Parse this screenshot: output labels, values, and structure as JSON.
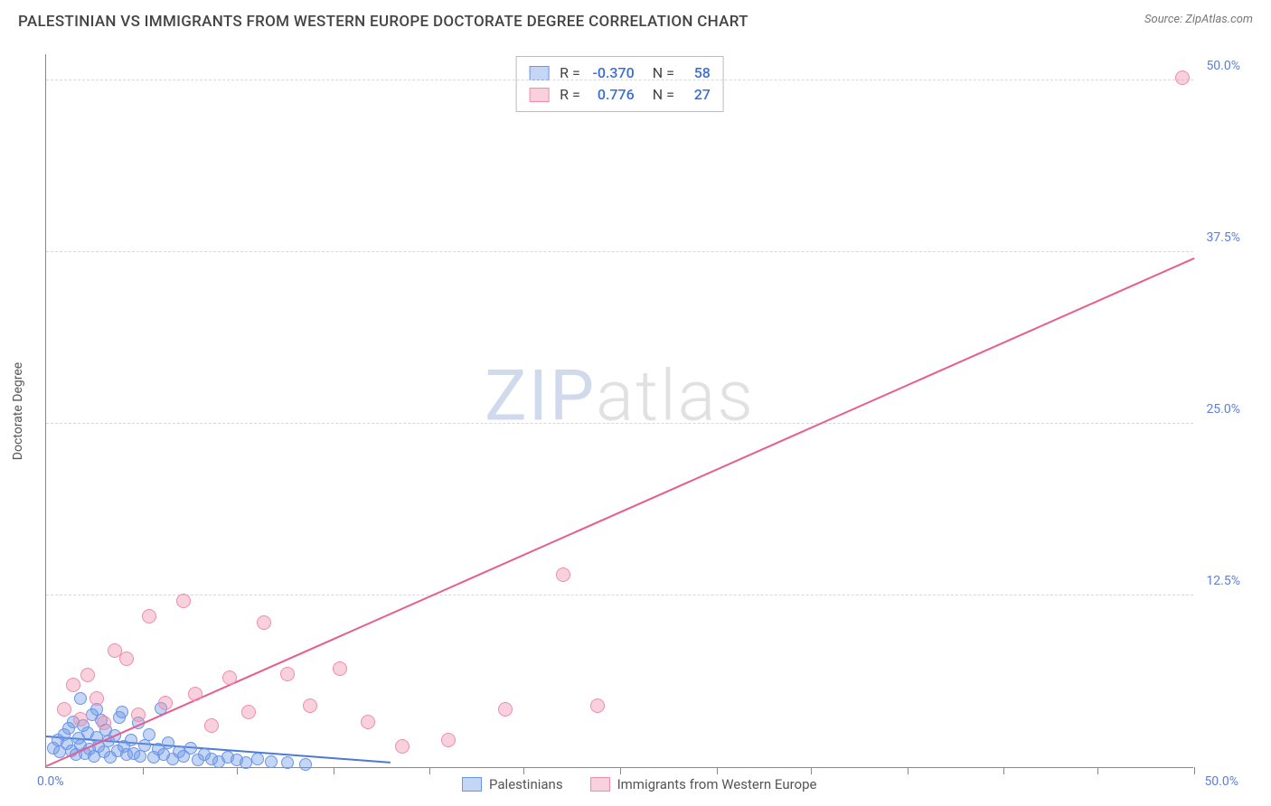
{
  "title": "PALESTINIAN VS IMMIGRANTS FROM WESTERN EUROPE DOCTORATE DEGREE CORRELATION CHART",
  "source_label": "Source: ZipAtlas.com",
  "y_axis_label": "Doctorate Degree",
  "watermark": {
    "zip": "ZIP",
    "atlas": "atlas"
  },
  "chart": {
    "type": "scatter",
    "xlim": [
      0,
      50
    ],
    "ylim": [
      0,
      52
    ],
    "x_origin_label": "0.0%",
    "x_max_label": "50.0%",
    "y_ticks": [
      {
        "v": 12.5,
        "label": "12.5%"
      },
      {
        "v": 25.0,
        "label": "25.0%"
      },
      {
        "v": 37.5,
        "label": "37.5%"
      },
      {
        "v": 50.0,
        "label": "50.0%"
      }
    ],
    "x_tick_positions": [
      4.2,
      8.3,
      12.5,
      16.7,
      20.8,
      25.0,
      29.2,
      33.3,
      37.5,
      41.7,
      45.8,
      50.0
    ],
    "background_color": "#ffffff",
    "grid_color": "#d8d8d8",
    "axis_color": "#888888",
    "series": [
      {
        "key": "palestinians",
        "label": "Palestinians",
        "color_fill": "rgba(110,150,230,0.40)",
        "color_stroke": "#6b96e6",
        "marker_radius": 7,
        "trend": {
          "x1": 0,
          "y1": 2.2,
          "x2": 15,
          "y2": 0.3,
          "color": "#4a7ad6",
          "width": 2
        },
        "stats": {
          "R": "-0.370",
          "N": "58"
        },
        "points": [
          [
            0.3,
            1.4
          ],
          [
            0.5,
            2.0
          ],
          [
            0.6,
            1.1
          ],
          [
            0.8,
            2.4
          ],
          [
            0.9,
            1.7
          ],
          [
            1.0,
            2.8
          ],
          [
            1.1,
            1.2
          ],
          [
            1.2,
            3.3
          ],
          [
            1.3,
            0.9
          ],
          [
            1.4,
            2.1
          ],
          [
            1.5,
            1.6
          ],
          [
            1.6,
            3.0
          ],
          [
            1.7,
            1.0
          ],
          [
            1.8,
            2.5
          ],
          [
            1.9,
            1.3
          ],
          [
            2.0,
            3.8
          ],
          [
            2.1,
            0.8
          ],
          [
            2.2,
            2.2
          ],
          [
            2.3,
            1.5
          ],
          [
            2.4,
            3.4
          ],
          [
            2.5,
            1.1
          ],
          [
            2.6,
            2.7
          ],
          [
            2.7,
            1.9
          ],
          [
            2.8,
            0.7
          ],
          [
            3.0,
            2.3
          ],
          [
            3.1,
            1.2
          ],
          [
            3.2,
            3.6
          ],
          [
            3.4,
            1.5
          ],
          [
            3.5,
            0.9
          ],
          [
            3.7,
            2.0
          ],
          [
            3.8,
            1.0
          ],
          [
            4.0,
            3.2
          ],
          [
            4.1,
            0.8
          ],
          [
            4.3,
            1.6
          ],
          [
            4.5,
            2.4
          ],
          [
            4.7,
            0.7
          ],
          [
            4.9,
            1.3
          ],
          [
            5.1,
            0.9
          ],
          [
            5.3,
            1.8
          ],
          [
            5.5,
            0.6
          ],
          [
            5.8,
            1.1
          ],
          [
            6.0,
            0.8
          ],
          [
            6.3,
            1.4
          ],
          [
            6.6,
            0.5
          ],
          [
            6.9,
            0.9
          ],
          [
            7.2,
            0.6
          ],
          [
            7.5,
            0.4
          ],
          [
            7.9,
            0.7
          ],
          [
            8.3,
            0.5
          ],
          [
            8.7,
            0.3
          ],
          [
            9.2,
            0.6
          ],
          [
            9.8,
            0.4
          ],
          [
            10.5,
            0.3
          ],
          [
            11.3,
            0.2
          ],
          [
            5.0,
            4.3
          ],
          [
            3.3,
            4.0
          ],
          [
            2.2,
            4.2
          ],
          [
            1.5,
            5.0
          ]
        ]
      },
      {
        "key": "immigrants_we",
        "label": "Immigrants from Western Europe",
        "color_fill": "rgba(240,140,170,0.40)",
        "color_stroke": "#f08cab",
        "marker_radius": 8,
        "trend": {
          "x1": 0,
          "y1": 0,
          "x2": 50,
          "y2": 37.0,
          "color": "#e85d8f",
          "width": 2
        },
        "stats": {
          "R": "0.776",
          "N": "27"
        },
        "points": [
          [
            0.8,
            4.2
          ],
          [
            1.2,
            6.0
          ],
          [
            1.5,
            3.5
          ],
          [
            1.8,
            6.7
          ],
          [
            2.2,
            5.0
          ],
          [
            2.5,
            3.2
          ],
          [
            3.0,
            8.5
          ],
          [
            3.5,
            7.9
          ],
          [
            4.0,
            3.8
          ],
          [
            4.5,
            11.0
          ],
          [
            5.2,
            4.7
          ],
          [
            6.0,
            12.1
          ],
          [
            6.5,
            5.3
          ],
          [
            7.2,
            3.0
          ],
          [
            8.0,
            6.5
          ],
          [
            8.8,
            4.0
          ],
          [
            9.5,
            10.5
          ],
          [
            10.5,
            6.8
          ],
          [
            11.5,
            4.5
          ],
          [
            12.8,
            7.2
          ],
          [
            14.0,
            3.3
          ],
          [
            15.5,
            1.5
          ],
          [
            17.5,
            2.0
          ],
          [
            20.0,
            4.2
          ],
          [
            22.5,
            14.0
          ],
          [
            24.0,
            4.5
          ],
          [
            49.5,
            50.2
          ]
        ]
      }
    ]
  },
  "legend_top": {
    "r_label": "R =",
    "n_label": "N ="
  }
}
